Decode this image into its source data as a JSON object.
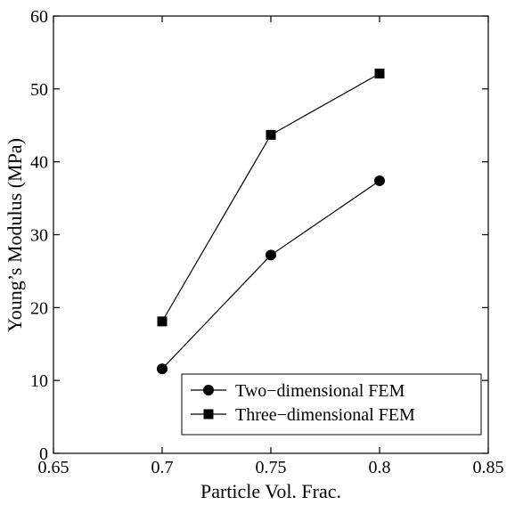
{
  "chart_data": {
    "type": "line",
    "title": "",
    "xlabel": "Particle Vol. Frac.",
    "ylabel": "Young’s Modulus (MPa)",
    "xlim": [
      0.65,
      0.85
    ],
    "ylim": [
      0,
      60
    ],
    "xticks": [
      0.65,
      0.7,
      0.75,
      0.8,
      0.85
    ],
    "xtick_labels": [
      "0.65",
      "0.7",
      "0.75",
      "0.8",
      "0.85"
    ],
    "yticks": [
      0,
      10,
      20,
      30,
      40,
      50,
      60
    ],
    "ytick_labels": [
      "0",
      "10",
      "20",
      "30",
      "40",
      "50",
      "60"
    ],
    "grid": false,
    "legend_position": "bottom-right",
    "series": [
      {
        "name": "Two−dimensional FEM",
        "marker": "circle",
        "color": "#000000",
        "x": [
          0.7,
          0.75,
          0.8
        ],
        "y": [
          11.6,
          27.2,
          37.4
        ]
      },
      {
        "name": "Three−dimensional FEM",
        "marker": "square",
        "color": "#000000",
        "x": [
          0.7,
          0.75,
          0.8
        ],
        "y": [
          18.1,
          43.7,
          52.1
        ]
      }
    ]
  }
}
